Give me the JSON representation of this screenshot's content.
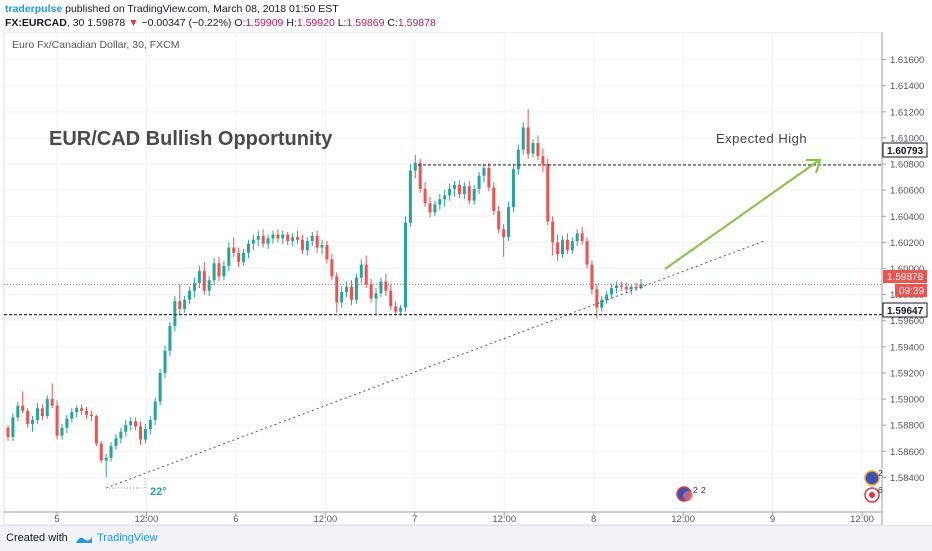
{
  "header": {
    "author": "traderpulse",
    "published_text": "published on TradingView.com, March 08, 2018 01:50 EST",
    "symbol": "FX:EURCAD",
    "interval": "30",
    "price": "1.59878",
    "change_arrow": "▼",
    "change": "−0.00347 (−0.22%)",
    "open_label": "O:",
    "open": "1.59909",
    "high_label": "H:",
    "high": "1.59920",
    "low_label": "L:",
    "low": "1.59869",
    "close_label": "C:",
    "close": "1.59878"
  },
  "footer": {
    "created_with": "Created with",
    "brand": "TradingView"
  },
  "chart_data": {
    "type": "candlestick",
    "instrument": "Euro Fx/Canadian Dollar, 30, FXCM",
    "title": "EUR/CAD Bullish Opportunity",
    "ylim": [
      1.5825,
      1.6175
    ],
    "y_ticks": [
      "1.61600",
      "1.61400",
      "1.61200",
      "1.61000",
      "1.60800",
      "1.60600",
      "1.60400",
      "1.60200",
      "1.60000",
      "1.59800",
      "1.59600",
      "1.59400",
      "1.59200",
      "1.59000",
      "1.58800",
      "1.58600",
      "1.58400"
    ],
    "x_ticks": [
      "5",
      "12:00",
      "6",
      "12:00",
      "7",
      "12:00",
      "8",
      "12:00",
      "9",
      "12:00"
    ],
    "price_labels": {
      "resistance": "1.60793",
      "current": "1.59878",
      "countdown": "09:39",
      "support": "1.59647"
    },
    "levels": {
      "resistance": 1.60793,
      "current": 1.59878,
      "support": 1.59647
    },
    "annotations": {
      "expected_high": "Expected High",
      "angle": "22°",
      "event_counts": [
        "2",
        "2"
      ],
      "side_counts": [
        "2",
        "6"
      ]
    },
    "colors": {
      "up": "#26a69a",
      "down": "#ef5350",
      "arrow": "#8bc34a",
      "current_line": "#ef5350",
      "text": "#444444"
    },
    "candles": [
      [
        1.5878,
        1.588,
        1.5868,
        1.5871
      ],
      [
        1.5871,
        1.5889,
        1.5868,
        1.5886
      ],
      [
        1.5886,
        1.5898,
        1.5883,
        1.5895
      ],
      [
        1.5895,
        1.5906,
        1.5889,
        1.5891
      ],
      [
        1.5891,
        1.5893,
        1.5878,
        1.5881
      ],
      [
        1.5881,
        1.5887,
        1.5875,
        1.5884
      ],
      [
        1.5884,
        1.5897,
        1.5881,
        1.5893
      ],
      [
        1.5893,
        1.5896,
        1.5884,
        1.5887
      ],
      [
        1.5887,
        1.5903,
        1.5885,
        1.59
      ],
      [
        1.59,
        1.5912,
        1.5893,
        1.5895
      ],
      [
        1.5895,
        1.5899,
        1.5869,
        1.5872
      ],
      [
        1.5872,
        1.5881,
        1.5869,
        1.5878
      ],
      [
        1.5878,
        1.5888,
        1.5874,
        1.5885
      ],
      [
        1.5885,
        1.5893,
        1.5882,
        1.589
      ],
      [
        1.589,
        1.5895,
        1.5886,
        1.5893
      ],
      [
        1.5893,
        1.5896,
        1.5888,
        1.5891
      ],
      [
        1.5891,
        1.5894,
        1.5885,
        1.5888
      ],
      [
        1.5888,
        1.5891,
        1.5883,
        1.5887
      ],
      [
        1.5887,
        1.5888,
        1.5864,
        1.5866
      ],
      [
        1.5866,
        1.5868,
        1.5851,
        1.5853
      ],
      [
        1.5853,
        1.5858,
        1.584,
        1.5855
      ],
      [
        1.5855,
        1.5867,
        1.5852,
        1.5864
      ],
      [
        1.5864,
        1.5873,
        1.5861,
        1.587
      ],
      [
        1.587,
        1.5878,
        1.5866,
        1.5875
      ],
      [
        1.5875,
        1.5884,
        1.5871,
        1.588
      ],
      [
        1.588,
        1.5886,
        1.5876,
        1.5883
      ],
      [
        1.5883,
        1.5886,
        1.5876,
        1.5879
      ],
      [
        1.5879,
        1.5883,
        1.5865,
        1.5869
      ],
      [
        1.5869,
        1.5881,
        1.5866,
        1.5877
      ],
      [
        1.5877,
        1.5887,
        1.5873,
        1.5884
      ],
      [
        1.5884,
        1.5901,
        1.588,
        1.5898
      ],
      [
        1.5898,
        1.5923,
        1.5895,
        1.592
      ],
      [
        1.592,
        1.5941,
        1.5916,
        1.5937
      ],
      [
        1.5937,
        1.5959,
        1.5933,
        1.5956
      ],
      [
        1.5956,
        1.5979,
        1.5952,
        1.5975
      ],
      [
        1.5975,
        1.5988,
        1.5965,
        1.5969
      ],
      [
        1.5969,
        1.5979,
        1.5966,
        1.5976
      ],
      [
        1.5976,
        1.5986,
        1.5973,
        1.5983
      ],
      [
        1.5983,
        1.5993,
        1.5978,
        1.5989
      ],
      [
        1.5989,
        1.6002,
        1.5985,
        1.5998
      ],
      [
        1.5998,
        1.6005,
        1.598,
        1.5983
      ],
      [
        1.5983,
        1.5994,
        1.5979,
        1.5991
      ],
      [
        1.5991,
        1.6008,
        1.5987,
        1.6004
      ],
      [
        1.6004,
        1.6009,
        1.599,
        1.5994
      ],
      [
        1.5994,
        1.6006,
        1.5991,
        1.6002
      ],
      [
        1.6002,
        1.602,
        1.5998,
        1.6016
      ],
      [
        1.6016,
        1.6024,
        1.6009,
        1.6012
      ],
      [
        1.6012,
        1.6016,
        1.6001,
        1.6005
      ],
      [
        1.6005,
        1.6015,
        1.6002,
        1.6012
      ],
      [
        1.6012,
        1.6022,
        1.6008,
        1.6019
      ],
      [
        1.6019,
        1.6026,
        1.6014,
        1.6022
      ],
      [
        1.6022,
        1.6029,
        1.6017,
        1.6025
      ],
      [
        1.6025,
        1.603,
        1.6016,
        1.6019
      ],
      [
        1.6019,
        1.6026,
        1.6015,
        1.6023
      ],
      [
        1.6023,
        1.6029,
        1.6019,
        1.6026
      ],
      [
        1.6026,
        1.603,
        1.602,
        1.6023
      ],
      [
        1.6023,
        1.6029,
        1.6019,
        1.6026
      ],
      [
        1.6026,
        1.6028,
        1.6018,
        1.6021
      ],
      [
        1.6021,
        1.6027,
        1.6017,
        1.6024
      ],
      [
        1.6024,
        1.6029,
        1.6019,
        1.6022
      ],
      [
        1.6022,
        1.6026,
        1.6011,
        1.6014
      ],
      [
        1.6014,
        1.6024,
        1.601,
        1.6021
      ],
      [
        1.6021,
        1.6028,
        1.6017,
        1.6025
      ],
      [
        1.6025,
        1.6029,
        1.6012,
        1.6016
      ],
      [
        1.6016,
        1.6022,
        1.6011,
        1.6018
      ],
      [
        1.6018,
        1.6021,
        1.6004,
        1.6007
      ],
      [
        1.6007,
        1.6011,
        1.5991,
        1.5994
      ],
      [
        1.5994,
        1.5997,
        1.5966,
        1.5974
      ],
      [
        1.5974,
        1.5986,
        1.597,
        1.5982
      ],
      [
        1.5982,
        1.599,
        1.5978,
        1.5986
      ],
      [
        1.5986,
        1.5991,
        1.5972,
        1.5976
      ],
      [
        1.5976,
        1.5996,
        1.5973,
        1.5993
      ],
      [
        1.5993,
        1.6007,
        1.5989,
        1.6003
      ],
      [
        1.6003,
        1.601,
        1.5985,
        1.5988
      ],
      [
        1.5988,
        1.5992,
        1.5974,
        1.5977
      ],
      [
        1.5977,
        1.5985,
        1.5964,
        1.5981
      ],
      [
        1.5981,
        1.5993,
        1.5978,
        1.599
      ],
      [
        1.599,
        1.5996,
        1.5979,
        1.5983
      ],
      [
        1.5983,
        1.5988,
        1.5968,
        1.5971
      ],
      [
        1.5971,
        1.5975,
        1.5964,
        1.5967
      ],
      [
        1.5967,
        1.5972,
        1.5964,
        1.597
      ],
      [
        1.597,
        1.604,
        1.5967,
        1.6035
      ],
      [
        1.6035,
        1.608,
        1.6032,
        1.6075
      ],
      [
        1.6075,
        1.6087,
        1.6069,
        1.6081
      ],
      [
        1.6081,
        1.6084,
        1.6058,
        1.6061
      ],
      [
        1.6061,
        1.6066,
        1.6047,
        1.605
      ],
      [
        1.605,
        1.6055,
        1.6039,
        1.6043
      ],
      [
        1.6043,
        1.6052,
        1.604,
        1.6049
      ],
      [
        1.6049,
        1.6057,
        1.6045,
        1.6053
      ],
      [
        1.6053,
        1.606,
        1.6047,
        1.6056
      ],
      [
        1.6056,
        1.6065,
        1.6052,
        1.6061
      ],
      [
        1.6061,
        1.6067,
        1.6055,
        1.6064
      ],
      [
        1.6064,
        1.6068,
        1.6054,
        1.6057
      ],
      [
        1.6057,
        1.6066,
        1.6053,
        1.6063
      ],
      [
        1.6063,
        1.6067,
        1.6049,
        1.6052
      ],
      [
        1.6052,
        1.6064,
        1.6049,
        1.6061
      ],
      [
        1.6061,
        1.6074,
        1.6057,
        1.6071
      ],
      [
        1.6071,
        1.608,
        1.6066,
        1.6077
      ],
      [
        1.6077,
        1.6081,
        1.6059,
        1.6062
      ],
      [
        1.6062,
        1.6066,
        1.6041,
        1.6044
      ],
      [
        1.6044,
        1.6048,
        1.6027,
        1.603
      ],
      [
        1.603,
        1.6034,
        1.6009,
        1.6024
      ],
      [
        1.6024,
        1.6051,
        1.6021,
        1.6047
      ],
      [
        1.6047,
        1.608,
        1.6043,
        1.6076
      ],
      [
        1.6076,
        1.6095,
        1.6072,
        1.6091
      ],
      [
        1.6091,
        1.6112,
        1.6087,
        1.6108
      ],
      [
        1.6108,
        1.6122,
        1.6084,
        1.6088
      ],
      [
        1.6088,
        1.6099,
        1.6085,
        1.6096
      ],
      [
        1.6096,
        1.6102,
        1.6083,
        1.6086
      ],
      [
        1.6086,
        1.6092,
        1.6074,
        1.608
      ],
      [
        1.608,
        1.6084,
        1.6033,
        1.6036
      ],
      [
        1.6036,
        1.604,
        1.601,
        1.602
      ],
      [
        1.602,
        1.6026,
        1.6006,
        1.6011
      ],
      [
        1.6011,
        1.6025,
        1.6008,
        1.6022
      ],
      [
        1.6022,
        1.6027,
        1.6011,
        1.6014
      ],
      [
        1.6014,
        1.6024,
        1.6011,
        1.6021
      ],
      [
        1.6021,
        1.603,
        1.6017,
        1.6027
      ],
      [
        1.6027,
        1.6032,
        1.6018,
        1.6021
      ],
      [
        1.6021,
        1.6024,
        1.6,
        1.6003
      ],
      [
        1.6003,
        1.6006,
        1.598,
        1.5984
      ],
      [
        1.5984,
        1.5988,
        1.5962,
        1.597
      ],
      [
        1.597,
        1.5979,
        1.5967,
        1.5976
      ],
      [
        1.5976,
        1.5983,
        1.5973,
        1.598
      ],
      [
        1.598,
        1.5988,
        1.5977,
        1.5985
      ],
      [
        1.5985,
        1.599,
        1.5981,
        1.5987
      ],
      [
        1.5987,
        1.599,
        1.5983,
        1.5986
      ],
      [
        1.5986,
        1.5989,
        1.5981,
        1.5984
      ],
      [
        1.5984,
        1.5988,
        1.598,
        1.5986
      ],
      [
        1.5986,
        1.5989,
        1.5983,
        1.5985
      ],
      [
        1.5985,
        1.5992,
        1.5984,
        1.5988
      ]
    ]
  }
}
